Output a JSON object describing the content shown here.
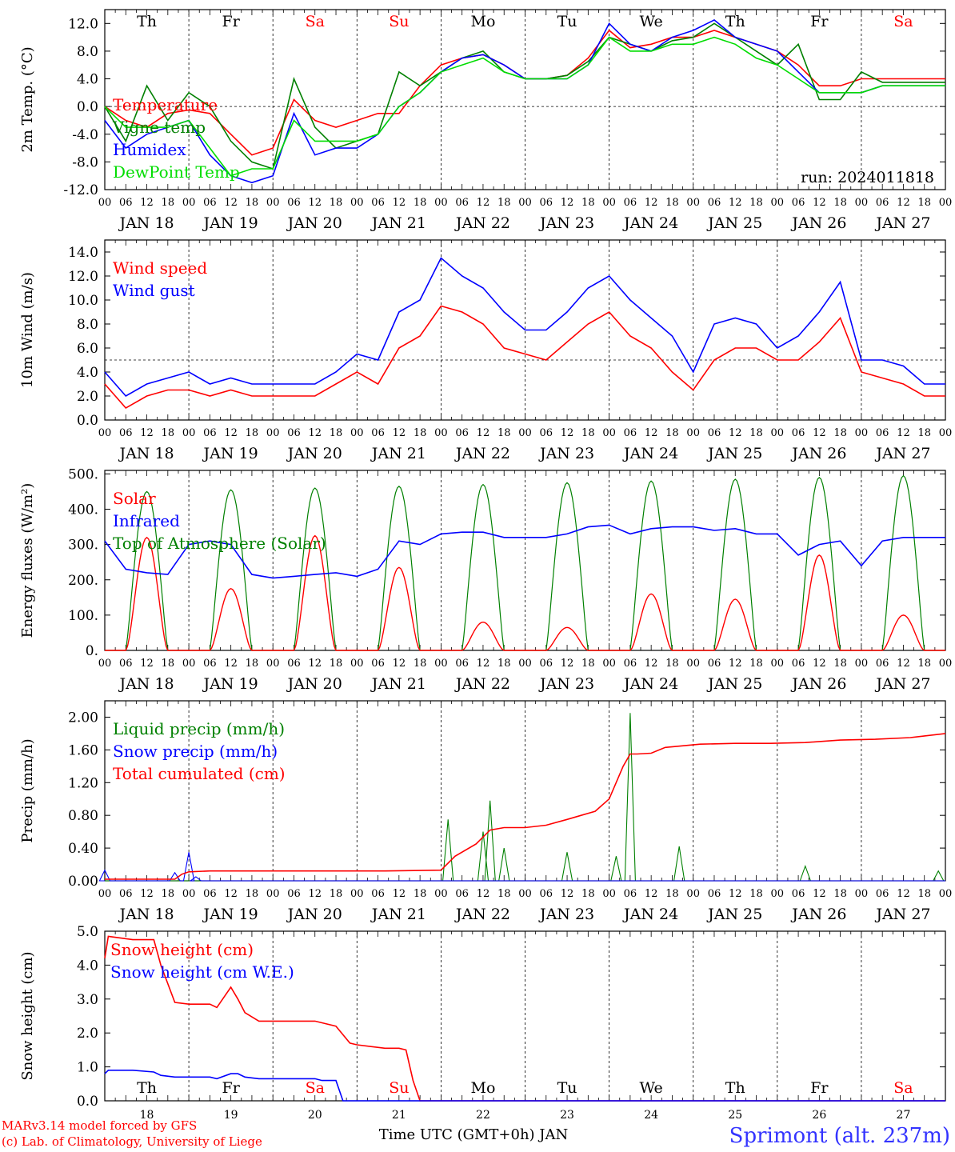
{
  "colors": {
    "red": "#ff0000",
    "green": "#008000",
    "blue": "#0000ff",
    "lime": "#00dd00",
    "axis": "#000000"
  },
  "days": {
    "weekdays": [
      "Th",
      "Fr",
      "Sa",
      "Su",
      "Mo",
      "Tu",
      "We",
      "Th",
      "Fr",
      "Sa"
    ],
    "weekday_colors": [
      "#000000",
      "#000000",
      "#ff0000",
      "#ff0000",
      "#000000",
      "#000000",
      "#000000",
      "#000000",
      "#000000",
      "#ff0000"
    ],
    "dates": [
      "JAN 18",
      "JAN 19",
      "JAN 20",
      "JAN 21",
      "JAN 22",
      "JAN 23",
      "JAN 24",
      "JAN 25",
      "JAN 26",
      "JAN 27"
    ],
    "day_numbers": [
      "18",
      "19",
      "20",
      "21",
      "22",
      "23",
      "24",
      "25",
      "26",
      "27"
    ],
    "hour_ticks": [
      "00",
      "06",
      "12",
      "18"
    ]
  },
  "footer": {
    "credit_line1": "MARv3.14 model forced by GFS",
    "credit_line2": "(c) Lab. of Climatology, University of Liege",
    "xlabel": "Time UTC (GMT+0h) JAN",
    "station": "Sprimont (alt. 237m)"
  },
  "chart_data": [
    {
      "type": "line",
      "ylabel": "2m Temp. (°C)",
      "ylim": [
        -12,
        14
      ],
      "yticks": [
        "12.0",
        "8.0",
        "4.0",
        "0.0",
        "-4.0",
        "-8.0",
        "-12.0"
      ],
      "annotation": "run: 2024011818",
      "x_range_hours": [
        0,
        240
      ],
      "series": [
        {
          "name": "Temperature",
          "color": "#ff0000",
          "x": [
            0,
            6,
            12,
            18,
            24,
            30,
            36,
            42,
            48,
            54,
            60,
            66,
            72,
            78,
            84,
            90,
            96,
            102,
            108,
            114,
            120,
            126,
            132,
            138,
            144,
            150,
            156,
            162,
            168,
            174,
            180,
            186,
            192,
            198,
            204,
            210,
            216,
            222,
            228,
            234,
            240
          ],
          "values": [
            0,
            -2,
            -3,
            -1,
            -0.5,
            -1,
            -4,
            -7,
            -6,
            1,
            -2,
            -3,
            -2,
            -1,
            -1,
            3,
            6,
            7,
            7.5,
            6,
            4,
            4,
            4.5,
            7,
            11,
            8.5,
            9,
            10,
            10,
            11,
            10,
            9,
            8,
            6,
            3,
            3,
            4,
            4,
            4,
            4,
            4
          ]
        },
        {
          "name": "Vigne temp",
          "color": "#008000",
          "x": [
            0,
            6,
            12,
            18,
            24,
            30,
            36,
            42,
            48,
            54,
            60,
            66,
            72,
            78,
            84,
            90,
            96,
            102,
            108,
            114,
            120,
            126,
            132,
            138,
            144,
            150,
            156,
            162,
            168,
            174,
            180,
            186,
            192,
            198,
            204,
            210,
            216,
            222,
            228,
            234,
            240
          ],
          "values": [
            0,
            -5,
            3,
            -2,
            2,
            0,
            -5,
            -8,
            -9,
            4,
            -3,
            -6,
            -5,
            -4,
            5,
            3,
            5,
            7,
            8,
            5,
            4,
            4,
            4.5,
            6.5,
            10,
            9,
            8,
            9.5,
            10,
            12,
            10,
            8,
            6,
            9,
            1,
            1,
            5,
            3.5,
            3.5,
            3.5,
            3.5
          ]
        },
        {
          "name": "Humidex",
          "color": "#0000ff",
          "x": [
            0,
            6,
            12,
            18,
            24,
            30,
            36,
            42,
            48,
            54,
            60,
            66,
            72,
            78,
            84,
            90,
            96,
            102,
            108,
            114,
            120,
            126,
            132,
            138,
            144,
            150,
            156,
            162,
            168,
            174,
            180,
            186,
            192,
            198,
            204,
            210,
            216,
            222,
            228,
            234,
            240
          ],
          "values": [
            -2,
            -6,
            -4,
            -3,
            -2,
            -7,
            -10,
            -11,
            -10,
            -1,
            -7,
            -6,
            -6,
            -4,
            0,
            2,
            5,
            7,
            7.5,
            6,
            4,
            4,
            4,
            6,
            12,
            9,
            8,
            10,
            11,
            12.5,
            10,
            9,
            8,
            5,
            2,
            2,
            2,
            3,
            3,
            3,
            3
          ]
        },
        {
          "name": "DewPoint Temp",
          "color": "#00dd00",
          "x": [
            0,
            6,
            12,
            18,
            24,
            30,
            36,
            42,
            48,
            54,
            60,
            66,
            72,
            78,
            84,
            90,
            96,
            102,
            108,
            114,
            120,
            126,
            132,
            138,
            144,
            150,
            156,
            162,
            168,
            174,
            180,
            186,
            192,
            198,
            204,
            210,
            216,
            222,
            228,
            234,
            240
          ],
          "values": [
            0,
            -3,
            -3,
            -3,
            -2,
            -6,
            -10,
            -9,
            -9,
            -2,
            -5,
            -5,
            -5,
            -4,
            0,
            2,
            5,
            6,
            7,
            5,
            4,
            4,
            4,
            6,
            10,
            8,
            8,
            9,
            9,
            10,
            9,
            7,
            6,
            4,
            2,
            2,
            2,
            3,
            3,
            3,
            3
          ]
        }
      ],
      "reference_line": 0
    },
    {
      "type": "line",
      "ylabel": "10m Wind (m/s)",
      "ylim": [
        0,
        15
      ],
      "yticks": [
        "14.0",
        "12.0",
        "10.0",
        "8.0",
        "6.0",
        "4.0",
        "2.0",
        "0.0"
      ],
      "reference_line": 5,
      "series": [
        {
          "name": "Wind speed",
          "color": "#ff0000",
          "x": [
            0,
            6,
            12,
            18,
            24,
            30,
            36,
            42,
            48,
            54,
            60,
            66,
            72,
            78,
            84,
            90,
            96,
            102,
            108,
            114,
            120,
            126,
            132,
            138,
            144,
            150,
            156,
            162,
            168,
            174,
            180,
            186,
            192,
            198,
            204,
            210,
            216,
            222,
            228,
            234,
            240
          ],
          "values": [
            3,
            1,
            2,
            2.5,
            2.5,
            2,
            2.5,
            2,
            2,
            2,
            2,
            3,
            4,
            3,
            6,
            7,
            9.5,
            9,
            8,
            6,
            5.5,
            5,
            6.5,
            8,
            9,
            7,
            6,
            4,
            2.5,
            5,
            6,
            6,
            5,
            5,
            6.5,
            8.5,
            4,
            3.5,
            3,
            2,
            2
          ]
        },
        {
          "name": "Wind gust",
          "color": "#0000ff",
          "x": [
            0,
            6,
            12,
            18,
            24,
            30,
            36,
            42,
            48,
            54,
            60,
            66,
            72,
            78,
            84,
            90,
            96,
            102,
            108,
            114,
            120,
            126,
            132,
            138,
            144,
            150,
            156,
            162,
            168,
            174,
            180,
            186,
            192,
            198,
            204,
            210,
            216,
            222,
            228,
            234,
            240
          ],
          "values": [
            4,
            2,
            3,
            3.5,
            4,
            3,
            3.5,
            3,
            3,
            3,
            3,
            4,
            5.5,
            5,
            9,
            10,
            13.5,
            12,
            11,
            9,
            7.5,
            7.5,
            9,
            11,
            12,
            10,
            8.5,
            7,
            4,
            8,
            8.5,
            8,
            6,
            7,
            9,
            11.5,
            5,
            5,
            4.5,
            3,
            3
          ]
        }
      ]
    },
    {
      "type": "line",
      "ylabel": "Energy fluxes (W/m²)",
      "ylim": [
        0,
        510
      ],
      "yticks": [
        "500.",
        "400.",
        "300.",
        "200.",
        "100.",
        "0."
      ],
      "series": [
        {
          "name": "Solar",
          "color": "#ff0000"
        },
        {
          "name": "Infrared",
          "color": "#0000ff"
        },
        {
          "name": "Top of Atmosphere (Solar)",
          "color": "#008000"
        }
      ],
      "solar_peaks": [
        320,
        175,
        325,
        235,
        80,
        65,
        160,
        145,
        270,
        100
      ],
      "toa_peaks": [
        450,
        455,
        460,
        465,
        470,
        475,
        480,
        485,
        490,
        495
      ],
      "infrared": {
        "x": [
          0,
          6,
          12,
          18,
          24,
          30,
          36,
          42,
          48,
          54,
          60,
          66,
          72,
          78,
          84,
          90,
          96,
          102,
          108,
          114,
          120,
          126,
          132,
          138,
          144,
          150,
          156,
          162,
          168,
          174,
          180,
          186,
          192,
          198,
          204,
          210,
          216,
          222,
          228,
          234,
          240
        ],
        "values": [
          310,
          230,
          220,
          215,
          300,
          310,
          300,
          215,
          205,
          210,
          215,
          220,
          210,
          230,
          310,
          300,
          330,
          335,
          335,
          320,
          320,
          320,
          330,
          350,
          355,
          330,
          345,
          350,
          350,
          340,
          345,
          330,
          330,
          270,
          300,
          310,
          240,
          310,
          320,
          320,
          320
        ]
      }
    },
    {
      "type": "line",
      "ylabel": "Precip (mm/h)",
      "ylim": [
        0,
        2.2
      ],
      "yticks": [
        "2.00",
        "1.60",
        "1.20",
        "0.80",
        "0.40",
        "0.00"
      ],
      "series": [
        {
          "name": "Liquid precip (mm/h)",
          "color": "#008000"
        },
        {
          "name": "Snow precip (mm/h)",
          "color": "#0000ff"
        },
        {
          "name": "Total cumulated (cm)",
          "color": "#ff0000"
        }
      ],
      "cumulated": {
        "x": [
          0,
          20,
          22,
          24,
          30,
          40,
          60,
          80,
          96,
          100,
          106,
          110,
          114,
          120,
          126,
          132,
          136,
          140,
          144,
          148,
          150,
          152,
          156,
          160,
          170,
          180,
          190,
          200,
          210,
          220,
          230,
          240
        ],
        "values": [
          0.02,
          0.02,
          0.08,
          0.11,
          0.12,
          0.12,
          0.12,
          0.12,
          0.13,
          0.3,
          0.45,
          0.62,
          0.65,
          0.65,
          0.68,
          0.75,
          0.8,
          0.85,
          1.0,
          1.4,
          1.55,
          1.55,
          1.56,
          1.63,
          1.67,
          1.68,
          1.68,
          1.69,
          1.72,
          1.73,
          1.75,
          1.8
        ]
      },
      "liquid_spikes": [
        [
          98,
          0.75
        ],
        [
          108,
          0.6
        ],
        [
          110,
          0.98
        ],
        [
          114,
          0.4
        ],
        [
          132,
          0.35
        ],
        [
          146,
          0.3
        ],
        [
          150,
          2.05
        ],
        [
          164,
          0.42
        ],
        [
          200,
          0.18
        ],
        [
          238,
          0.12
        ]
      ],
      "snow_spikes": [
        [
          0,
          0.13
        ],
        [
          20,
          0.1
        ],
        [
          24,
          0.35
        ],
        [
          26,
          0.05
        ]
      ]
    },
    {
      "type": "line",
      "ylabel": "Snow height (cm)",
      "ylim": [
        0,
        5
      ],
      "yticks": [
        "5.0",
        "4.0",
        "3.0",
        "2.0",
        "1.0",
        "0.0"
      ],
      "series": [
        {
          "name": "Snow height (cm)",
          "color": "#ff0000",
          "x": [
            0,
            1,
            8,
            14,
            16,
            20,
            24,
            30,
            32,
            36,
            38,
            40,
            44,
            48,
            60,
            66,
            70,
            72,
            76,
            80,
            84,
            86,
            88,
            90,
            240
          ],
          "values": [
            4.2,
            4.85,
            4.75,
            4.75,
            4.0,
            2.9,
            2.85,
            2.85,
            2.75,
            3.35,
            3.0,
            2.6,
            2.35,
            2.35,
            2.35,
            2.2,
            1.7,
            1.65,
            1.6,
            1.55,
            1.55,
            1.5,
            0.6,
            0.0,
            0.0
          ]
        },
        {
          "name": "Snow height (cm W.E.)",
          "color": "#0000ff",
          "x": [
            0,
            1,
            8,
            14,
            16,
            20,
            24,
            30,
            32,
            36,
            38,
            40,
            44,
            48,
            60,
            62,
            66,
            68,
            72,
            240
          ],
          "values": [
            0.8,
            0.9,
            0.9,
            0.85,
            0.75,
            0.7,
            0.7,
            0.7,
            0.65,
            0.8,
            0.8,
            0.7,
            0.65,
            0.65,
            0.65,
            0.6,
            0.6,
            0.0,
            0.0,
            0.0
          ]
        }
      ]
    }
  ]
}
